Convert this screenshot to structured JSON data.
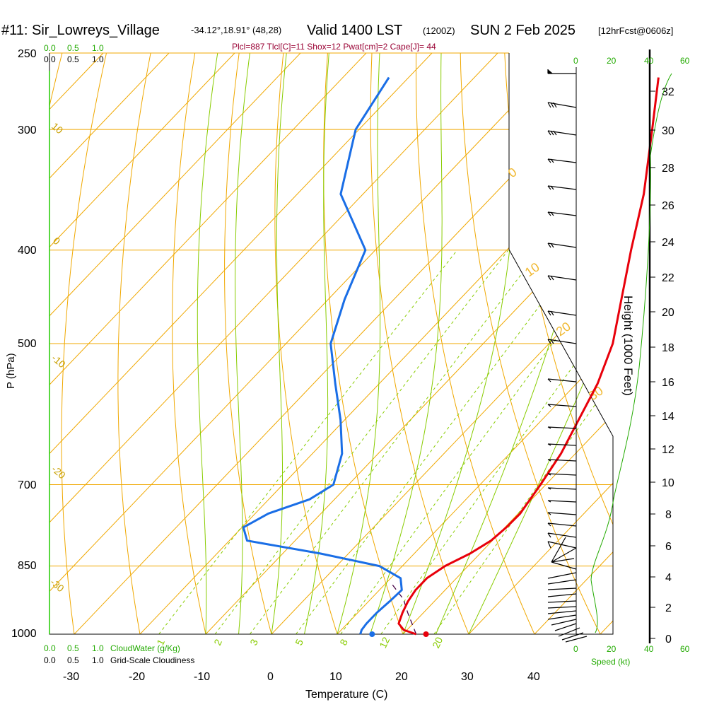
{
  "header": {
    "station": "#11: Sir_Lowreys_Village",
    "coords": "-34.12°,18.91° (48,28)",
    "valid": "Valid 1400 LST",
    "utc": "(1200Z)",
    "date": "SUN 2 Feb 2025",
    "forecast": "[12hrFcst@0606z]",
    "indices": "Plcl=887 Tlcl[C]=11 Shox=12 Pwat[cm]=2 Cape[J]= 44"
  },
  "colors": {
    "temperature": "#e8000b",
    "dewpoint": "#1a6ee6",
    "isotherm": "#f0a800",
    "mixing_ratio": "#88cc00",
    "green_text": "#22aa00",
    "index_text": "#990033"
  },
  "scale_top": {
    "green": [
      "0.0",
      "0.5",
      "1.0"
    ],
    "black": [
      "0.0",
      "0.5",
      "1.0"
    ]
  },
  "scale_bottom": {
    "cloudwater": [
      "0.0",
      "0.5",
      "1.0"
    ],
    "cloudwater_label": "CloudWater (g/Kg)",
    "cloudiness": [
      "0.0",
      "0.5",
      "1.0"
    ],
    "cloudiness_label": "Grid-Scale Cloudiness"
  },
  "wind_scale": {
    "top": [
      "0",
      "20",
      "40",
      "60"
    ],
    "bottom": [
      "0",
      "20",
      "40",
      "60"
    ],
    "label": "Speed (kt)"
  },
  "chart_data": {
    "type": "skew-t",
    "xlabel": "Temperature (C)",
    "ylabel": "P (hPa)",
    "y2label": "Height (1000 Feet)",
    "x_ticks": [
      -30,
      -20,
      -10,
      0,
      10,
      20,
      30,
      40
    ],
    "p_ticks": [
      250,
      300,
      400,
      500,
      700,
      850,
      1000
    ],
    "height_ticks": [
      0,
      2,
      4,
      6,
      8,
      10,
      12,
      14,
      16,
      18,
      20,
      22,
      24,
      26,
      28,
      30,
      32
    ],
    "xlim": [
      -34,
      46
    ],
    "plim": [
      250,
      1000
    ],
    "skew_isotherm_labels": [
      "0",
      "10",
      "20",
      "30"
    ],
    "theta_labels": [
      "10",
      "0",
      "-10",
      "-20",
      "-30"
    ],
    "mixing_ratio_labels": [
      "1",
      "2",
      "3",
      "5",
      "8",
      "12",
      "20"
    ],
    "temperature": [
      {
        "p": 1000,
        "t": 22
      },
      {
        "p": 990,
        "t": 19.5
      },
      {
        "p": 975,
        "t": 17.8
      },
      {
        "p": 950,
        "t": 16.8
      },
      {
        "p": 925,
        "t": 16
      },
      {
        "p": 900,
        "t": 15.5
      },
      {
        "p": 875,
        "t": 15.5
      },
      {
        "p": 850,
        "t": 16.5
      },
      {
        "p": 825,
        "t": 18.5
      },
      {
        "p": 800,
        "t": 19.8
      },
      {
        "p": 775,
        "t": 20.2
      },
      {
        "p": 750,
        "t": 20.3
      },
      {
        "p": 700,
        "t": 19.2
      },
      {
        "p": 650,
        "t": 17.8
      },
      {
        "p": 600,
        "t": 15.6
      },
      {
        "p": 550,
        "t": 13.2
      },
      {
        "p": 500,
        "t": 9.7
      },
      {
        "p": 450,
        "t": 4.6
      },
      {
        "p": 400,
        "t": -1.1
      },
      {
        "p": 350,
        "t": -7.3
      },
      {
        "p": 300,
        "t": -15.4
      },
      {
        "p": 265,
        "t": -22
      }
    ],
    "dewpoint": [
      {
        "p": 1000,
        "t": 13.5
      },
      {
        "p": 990,
        "t": 13.1
      },
      {
        "p": 975,
        "t": 12.9
      },
      {
        "p": 950,
        "t": 12.9
      },
      {
        "p": 925,
        "t": 13.2
      },
      {
        "p": 900,
        "t": 13.4
      },
      {
        "p": 875,
        "t": 11.5
      },
      {
        "p": 850,
        "t": 6.5
      },
      {
        "p": 825,
        "t": -4.3
      },
      {
        "p": 800,
        "t": -17.3
      },
      {
        "p": 775,
        "t": -19.8
      },
      {
        "p": 750,
        "t": -18
      },
      {
        "p": 725,
        "t": -13.8
      },
      {
        "p": 700,
        "t": -12.3
      },
      {
        "p": 650,
        "t": -15.5
      },
      {
        "p": 600,
        "t": -20.6
      },
      {
        "p": 550,
        "t": -26.7
      },
      {
        "p": 500,
        "t": -33.2
      },
      {
        "p": 450,
        "t": -37.5
      },
      {
        "p": 400,
        "t": -41.5
      },
      {
        "p": 350,
        "t": -53.4
      },
      {
        "p": 300,
        "t": -60.5
      },
      {
        "p": 265,
        "t": -63
      }
    ],
    "parcel": [
      {
        "p": 1000,
        "t": 22
      },
      {
        "p": 950,
        "t": 17.6
      },
      {
        "p": 920,
        "t": 15
      },
      {
        "p": 887,
        "t": 11
      }
    ],
    "surface_temperature": 23.5,
    "surface_dewpoint": 15.3
  }
}
